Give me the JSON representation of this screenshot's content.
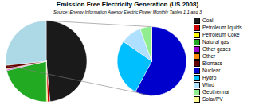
{
  "chart_data": [
    {
      "type": "pie",
      "title": "Emission Free Electricity Generation (US 2008)",
      "subtitle": "Source: Energy Information Agency Electric Power Monthly Tables 1.1 and 3",
      "categories": [
        "Coal",
        "Petroleum liquids",
        "Petroleum Coke",
        "Natural gas",
        "Other gases",
        "Other",
        "Biomass",
        null
      ],
      "values": [
        48.5,
        1.0,
        0.4,
        21.4,
        0.4,
        0.3,
        1.4,
        26.6
      ],
      "colors": [
        "#1a1a1a",
        "#cc0000",
        "#ffff00",
        "#22aa22",
        "#9900cc",
        "#ff8800",
        "#660000",
        "#add8e6"
      ],
      "legend": "right"
    },
    {
      "type": "pie",
      "categories": [
        "Nuclear",
        "Hydro",
        "Wind",
        "Geothermal",
        "Solar/PV"
      ],
      "values": [
        56.0,
        26.0,
        9.5,
        5.0,
        0.3
      ],
      "colors": [
        "#0000cc",
        "#00bfff",
        "#b0e0ff",
        "#90ee90",
        "#ffff99"
      ],
      "legend": "right"
    }
  ]
}
